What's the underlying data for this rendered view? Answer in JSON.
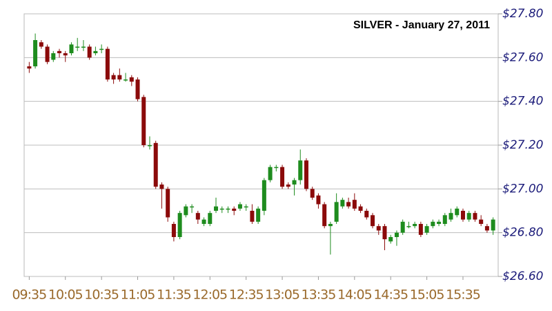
{
  "chart_data": {
    "type": "candlestick",
    "title": "SILVER - January 27, 2011",
    "categories": [
      "09:35",
      null,
      null,
      null,
      null,
      null,
      "10:05",
      null,
      null,
      null,
      null,
      null,
      "10:35",
      null,
      null,
      null,
      null,
      null,
      "11:05",
      null,
      null,
      null,
      null,
      null,
      "11:35",
      null,
      null,
      null,
      null,
      null,
      "12:05",
      null,
      null,
      null,
      null,
      null,
      "12:35",
      null,
      null,
      null,
      null,
      null,
      "13:05",
      null,
      null,
      null,
      null,
      null,
      "13:35",
      null,
      null,
      null,
      null,
      null,
      "14:05",
      null,
      null,
      null,
      null,
      null,
      "14:35",
      null,
      null,
      null,
      null,
      null,
      "15:05",
      null,
      null,
      null,
      null,
      null,
      "15:35",
      null,
      null,
      null,
      null,
      null
    ],
    "open": [
      27.56,
      27.56,
      27.67,
      27.65,
      27.59,
      27.63,
      27.62,
      27.62,
      27.65,
      27.65,
      27.65,
      27.62,
      27.64,
      27.64,
      27.52,
      27.52,
      27.5,
      27.51,
      27.5,
      27.42,
      27.2,
      27.21,
      27.02,
      27.0,
      26.84,
      26.78,
      26.88,
      26.92,
      26.89,
      26.84,
      26.84,
      26.9,
      26.91,
      26.91,
      26.91,
      26.91,
      26.92,
      26.9,
      26.85,
      26.9,
      27.04,
      27.1,
      27.1,
      27.02,
      27.02,
      27.04,
      27.13,
      27.0,
      26.97,
      26.93,
      26.83,
      26.85,
      26.92,
      26.94,
      26.95,
      26.92,
      26.9,
      26.88,
      26.83,
      26.83,
      26.76,
      26.78,
      26.8,
      26.83,
      26.83,
      26.84,
      26.8,
      26.83,
      26.84,
      26.84,
      26.86,
      26.88,
      26.9,
      26.86,
      26.89,
      26.86,
      26.83,
      26.81
    ],
    "high": [
      27.58,
      27.71,
      27.68,
      27.66,
      27.63,
      27.64,
      27.63,
      27.67,
      27.69,
      27.68,
      27.66,
      27.65,
      27.66,
      27.65,
      27.53,
      27.55,
      27.53,
      27.52,
      27.51,
      27.43,
      27.24,
      27.22,
      27.03,
      27.01,
      26.85,
      26.9,
      26.93,
      26.93,
      26.9,
      26.87,
      26.9,
      26.96,
      26.92,
      26.92,
      26.92,
      26.94,
      26.93,
      26.93,
      26.92,
      27.05,
      27.11,
      27.11,
      27.11,
      27.03,
      27.05,
      27.18,
      27.14,
      27.01,
      26.98,
      26.94,
      26.85,
      26.98,
      26.96,
      26.96,
      26.98,
      26.93,
      26.91,
      26.89,
      26.84,
      26.84,
      26.79,
      26.81,
      26.86,
      26.85,
      26.85,
      26.85,
      26.84,
      26.86,
      26.86,
      26.89,
      26.91,
      26.92,
      26.91,
      26.9,
      26.9,
      26.88,
      26.84,
      26.87
    ],
    "low": [
      27.53,
      27.55,
      27.64,
      27.57,
      27.58,
      27.6,
      27.58,
      27.61,
      27.63,
      27.63,
      27.59,
      27.61,
      27.62,
      27.49,
      27.48,
      27.49,
      27.49,
      27.47,
      27.4,
      27.19,
      27.18,
      27.0,
      26.91,
      26.85,
      26.76,
      26.77,
      26.87,
      26.89,
      26.84,
      26.83,
      26.83,
      26.89,
      26.89,
      26.89,
      26.88,
      26.9,
      26.9,
      26.84,
      26.84,
      26.88,
      27.03,
      27.08,
      27.0,
      27.0,
      26.97,
      27.02,
      26.99,
      26.95,
      26.91,
      26.82,
      26.7,
      26.84,
      26.91,
      26.91,
      26.9,
      26.89,
      26.86,
      26.82,
      26.79,
      26.72,
      26.75,
      26.74,
      26.79,
      26.82,
      26.82,
      26.78,
      26.79,
      26.82,
      26.83,
      26.83,
      26.85,
      26.87,
      26.85,
      26.85,
      26.85,
      26.83,
      26.8,
      26.79
    ],
    "close": [
      27.55,
      27.68,
      27.65,
      27.58,
      27.62,
      27.62,
      27.61,
      27.66,
      27.65,
      27.65,
      27.6,
      27.63,
      27.64,
      27.5,
      27.5,
      27.5,
      27.5,
      27.49,
      27.41,
      27.2,
      27.2,
      27.01,
      27.0,
      26.87,
      26.78,
      26.89,
      26.92,
      26.92,
      26.86,
      26.86,
      26.89,
      26.92,
      26.91,
      26.91,
      26.9,
      26.93,
      26.92,
      26.85,
      26.91,
      27.04,
      27.1,
      27.1,
      27.01,
      27.01,
      27.04,
      27.13,
      27.0,
      26.96,
      26.93,
      26.83,
      26.84,
      26.94,
      26.95,
      26.92,
      26.91,
      26.9,
      26.87,
      26.83,
      26.81,
      26.77,
      26.78,
      26.8,
      26.85,
      26.83,
      26.84,
      26.79,
      26.83,
      26.85,
      26.85,
      26.88,
      26.89,
      26.91,
      26.86,
      26.89,
      26.86,
      26.84,
      26.81,
      26.86
    ],
    "up_color": "#1e8c1e",
    "down_color": "#8b0a0a",
    "ylim": [
      26.6,
      27.8
    ],
    "yticks": [
      {
        "value": 26.6,
        "label": "$26.60"
      },
      {
        "value": 26.8,
        "label": "$26.80"
      },
      {
        "value": 27.0,
        "label": "$27.00"
      },
      {
        "value": 27.2,
        "label": "$27.20"
      },
      {
        "value": 27.4,
        "label": "$27.40"
      },
      {
        "value": 27.6,
        "label": "$27.60"
      },
      {
        "value": 27.8,
        "label": "$27.80"
      }
    ],
    "grid": true
  }
}
